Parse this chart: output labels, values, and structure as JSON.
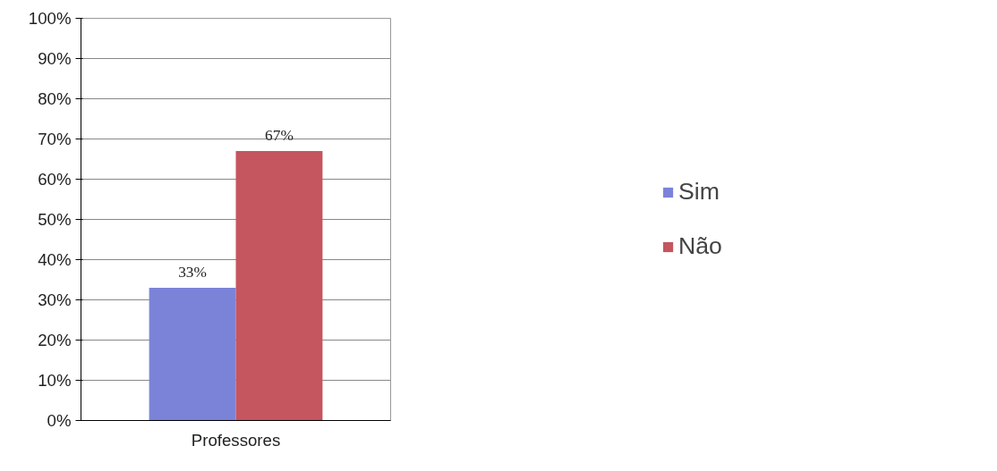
{
  "chart_data": {
    "type": "bar",
    "categories": [
      "Professores"
    ],
    "series": [
      {
        "name": "Sim",
        "color": "#7b83d9",
        "values": [
          33
        ],
        "value_labels": [
          "33%"
        ]
      },
      {
        "name": "Não",
        "color": "#c5555f",
        "values": [
          67
        ],
        "value_labels": [
          "67%"
        ]
      }
    ],
    "ylim": [
      0,
      100
    ],
    "yticks": [
      {
        "value": 0,
        "label": "0%"
      },
      {
        "value": 10,
        "label": "10%"
      },
      {
        "value": 20,
        "label": "20%"
      },
      {
        "value": 30,
        "label": "30%"
      },
      {
        "value": 40,
        "label": "40%"
      },
      {
        "value": 50,
        "label": "50%"
      },
      {
        "value": 60,
        "label": "60%"
      },
      {
        "value": 70,
        "label": "70%"
      },
      {
        "value": 80,
        "label": "80%"
      },
      {
        "value": 90,
        "label": "90%"
      },
      {
        "value": 100,
        "label": "100%"
      }
    ],
    "grid": "y",
    "legend": "right"
  }
}
